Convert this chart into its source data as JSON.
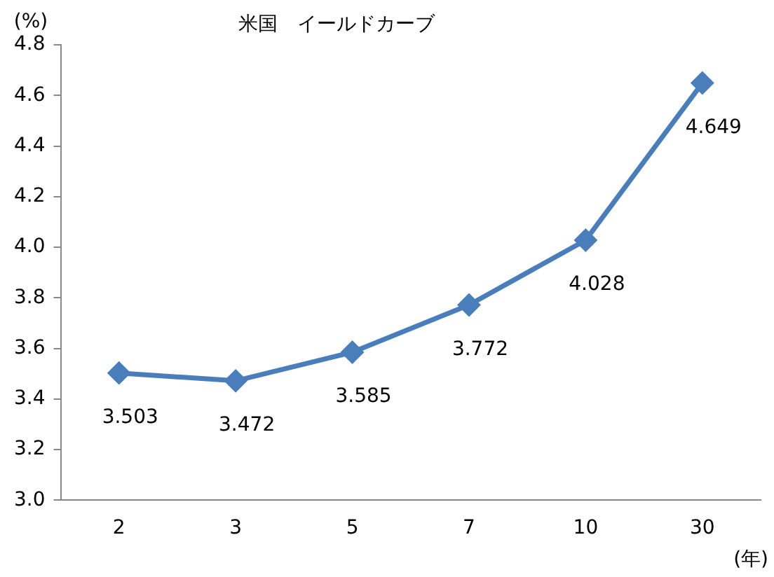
{
  "chart_data": {
    "type": "line",
    "title": "米国　イールドカーブ",
    "ylabel": "(%)",
    "xlabel": "(年)",
    "categories": [
      "2",
      "3",
      "5",
      "7",
      "10",
      "30"
    ],
    "series": [
      {
        "color": "#4a7ebb",
        "values": [
          3.503,
          3.472,
          3.585,
          3.772,
          4.028,
          4.649
        ]
      }
    ],
    "ylim": [
      3.0,
      4.8
    ],
    "yticks": [
      {
        "value": 3.0,
        "label": "3.0"
      },
      {
        "value": 3.2,
        "label": "3.2"
      },
      {
        "value": 3.4,
        "label": "3.4"
      },
      {
        "value": 3.6,
        "label": "3.6"
      },
      {
        "value": 3.8,
        "label": "3.8"
      },
      {
        "value": 4.0,
        "label": "4.0"
      },
      {
        "value": 4.2,
        "label": "4.2"
      },
      {
        "value": 4.4,
        "label": "4.4"
      },
      {
        "value": 4.6,
        "label": "4.6"
      },
      {
        "value": 4.8,
        "label": "4.8"
      }
    ],
    "value_labels": [
      "3.503",
      "3.472",
      "3.585",
      "3.772",
      "4.028",
      "4.649"
    ],
    "grid": false,
    "legend": false,
    "marker": "diamond",
    "line_style": "solid"
  }
}
